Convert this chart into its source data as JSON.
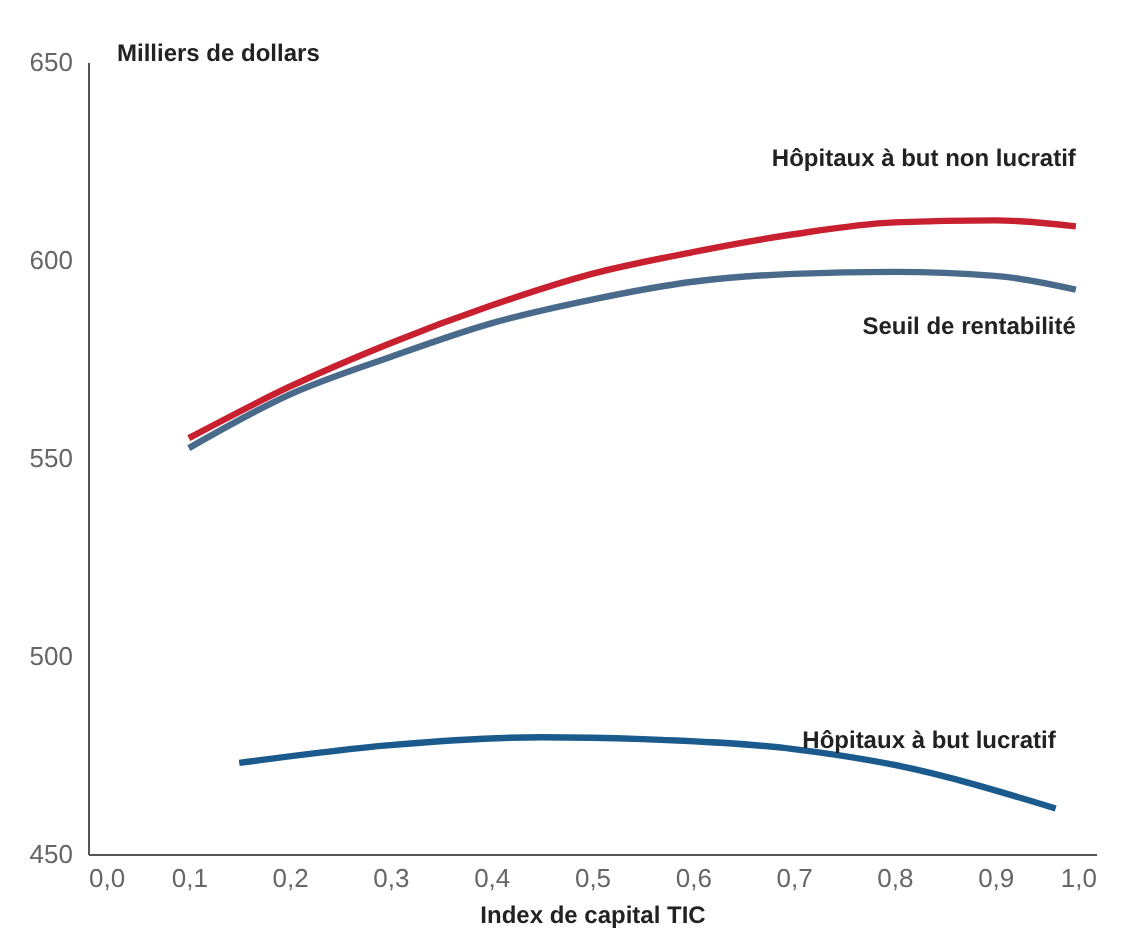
{
  "chart_data": {
    "type": "line",
    "xlabel": "Index de capital TIC",
    "ylabel": "Milliers de dollars",
    "xlim": [
      0,
      1
    ],
    "ylim": [
      450,
      650
    ],
    "xticks": [
      {
        "value": 0,
        "label": "0,0"
      },
      {
        "value": 0.1,
        "label": "0,1"
      },
      {
        "value": 0.2,
        "label": "0,2"
      },
      {
        "value": 0.3,
        "label": "0,3"
      },
      {
        "value": 0.4,
        "label": "0,4"
      },
      {
        "value": 0.5,
        "label": "0,5"
      },
      {
        "value": 0.6,
        "label": "0,6"
      },
      {
        "value": 0.7,
        "label": "0,7"
      },
      {
        "value": 0.8,
        "label": "0,8"
      },
      {
        "value": 0.9,
        "label": "0,9"
      },
      {
        "value": 1,
        "label": "1,0"
      }
    ],
    "yticks": [
      450,
      500,
      550,
      600,
      650
    ],
    "grid": false,
    "legend": false,
    "marker": "none",
    "line_style": "solid",
    "series": [
      {
        "name": "Hôpitaux à but non lucratif",
        "color": "#c8202f",
        "x": [
          0.1,
          0.2,
          0.3,
          0.4,
          0.5,
          0.6,
          0.7,
          0.8,
          0.9,
          0.98
        ],
        "values": [
          555,
          568,
          579,
          588.5,
          596.5,
          602,
          606.5,
          609.5,
          610,
          608.5
        ]
      },
      {
        "name": "Seuil de rentabilité",
        "color": "#4a6a8c",
        "x": [
          0.1,
          0.2,
          0.3,
          0.4,
          0.5,
          0.6,
          0.7,
          0.8,
          0.9,
          0.98
        ],
        "values": [
          552.5,
          566,
          575.5,
          584,
          590,
          594.5,
          596.5,
          597,
          596,
          592.5
        ]
      },
      {
        "name": "Hôpitaux à but lucratif",
        "color": "#1a5a8c",
        "x": [
          0.15,
          0.3,
          0.45,
          0.55,
          0.7,
          0.8,
          0.96
        ],
        "values": [
          473,
          477.5,
          479.5,
          479,
          476.5,
          472.5,
          461.5
        ]
      }
    ]
  }
}
